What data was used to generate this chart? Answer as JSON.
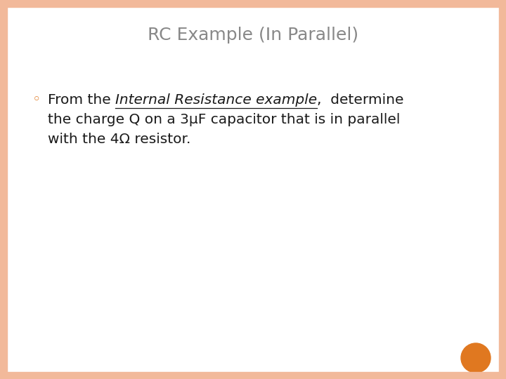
{
  "title_display": "RC Example (In Parallel)",
  "background_color": "#ffffff",
  "border_color": "#f2b99a",
  "border_thickness": 10,
  "title_color": "#888888",
  "bullet_color": "#e07820",
  "bullet_text_color": "#1a1a1a",
  "text_line1_normal1": "From the ",
  "text_line1_italic": "Internal Resistance example",
  "text_line1_normal2": ",  determine",
  "text_line2": "the charge Q on a 3μF capacitor that is in parallel",
  "text_line3": "with the 4Ω resistor.",
  "orange_dot_color": "#e07820",
  "font_size_title": 18,
  "font_size_body": 14.5,
  "font_size_bullet": 13
}
